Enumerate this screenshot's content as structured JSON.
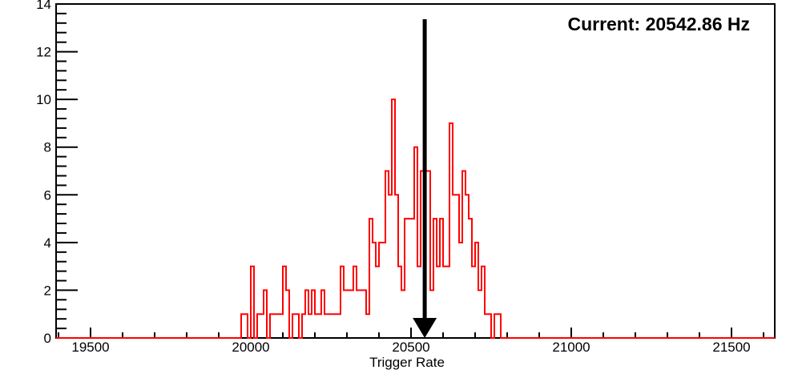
{
  "chart_data": {
    "type": "bar",
    "style": "step-outline-histogram",
    "title": "",
    "xlabel": "Trigger Rate",
    "ylabel": "",
    "annotation": {
      "text": "Current: 20542.86 Hz",
      "position": "top-right"
    },
    "series_color": "#ff0000",
    "axis_color": "#000000",
    "background_color": "#ffffff",
    "grid": false,
    "legend": false,
    "x_range": [
      19392.5,
      21635
    ],
    "y_range": [
      0,
      14
    ],
    "x_major_ticks": [
      19500,
      20000,
      20500,
      21000,
      21500
    ],
    "x_minor_step": 100,
    "y_major_ticks": [
      0,
      2,
      4,
      6,
      8,
      10,
      12,
      14
    ],
    "y_minor_step": 0.4,
    "bin_start": 19960,
    "bin_width": 10,
    "counts": [
      0,
      1,
      1,
      0,
      3,
      0,
      1,
      1,
      2,
      0,
      1,
      1,
      1,
      1,
      3,
      2,
      0,
      1,
      1,
      0,
      1,
      2,
      1,
      2,
      1,
      1,
      2,
      1,
      1,
      1,
      1,
      1,
      3,
      2,
      2,
      2,
      3,
      2,
      2,
      2,
      1,
      5,
      4,
      3,
      4,
      4,
      7,
      6,
      10,
      6,
      3,
      2,
      5,
      5,
      5,
      8,
      3,
      7,
      7,
      7,
      2,
      5,
      3,
      5,
      3,
      3,
      9,
      6,
      6,
      4,
      7,
      6,
      5,
      3,
      4,
      2,
      3,
      1,
      1,
      0,
      1,
      1,
      0,
      0
    ],
    "marker": {
      "value": 20542.86,
      "color": "#000000",
      "shape": "down-arrow"
    }
  }
}
